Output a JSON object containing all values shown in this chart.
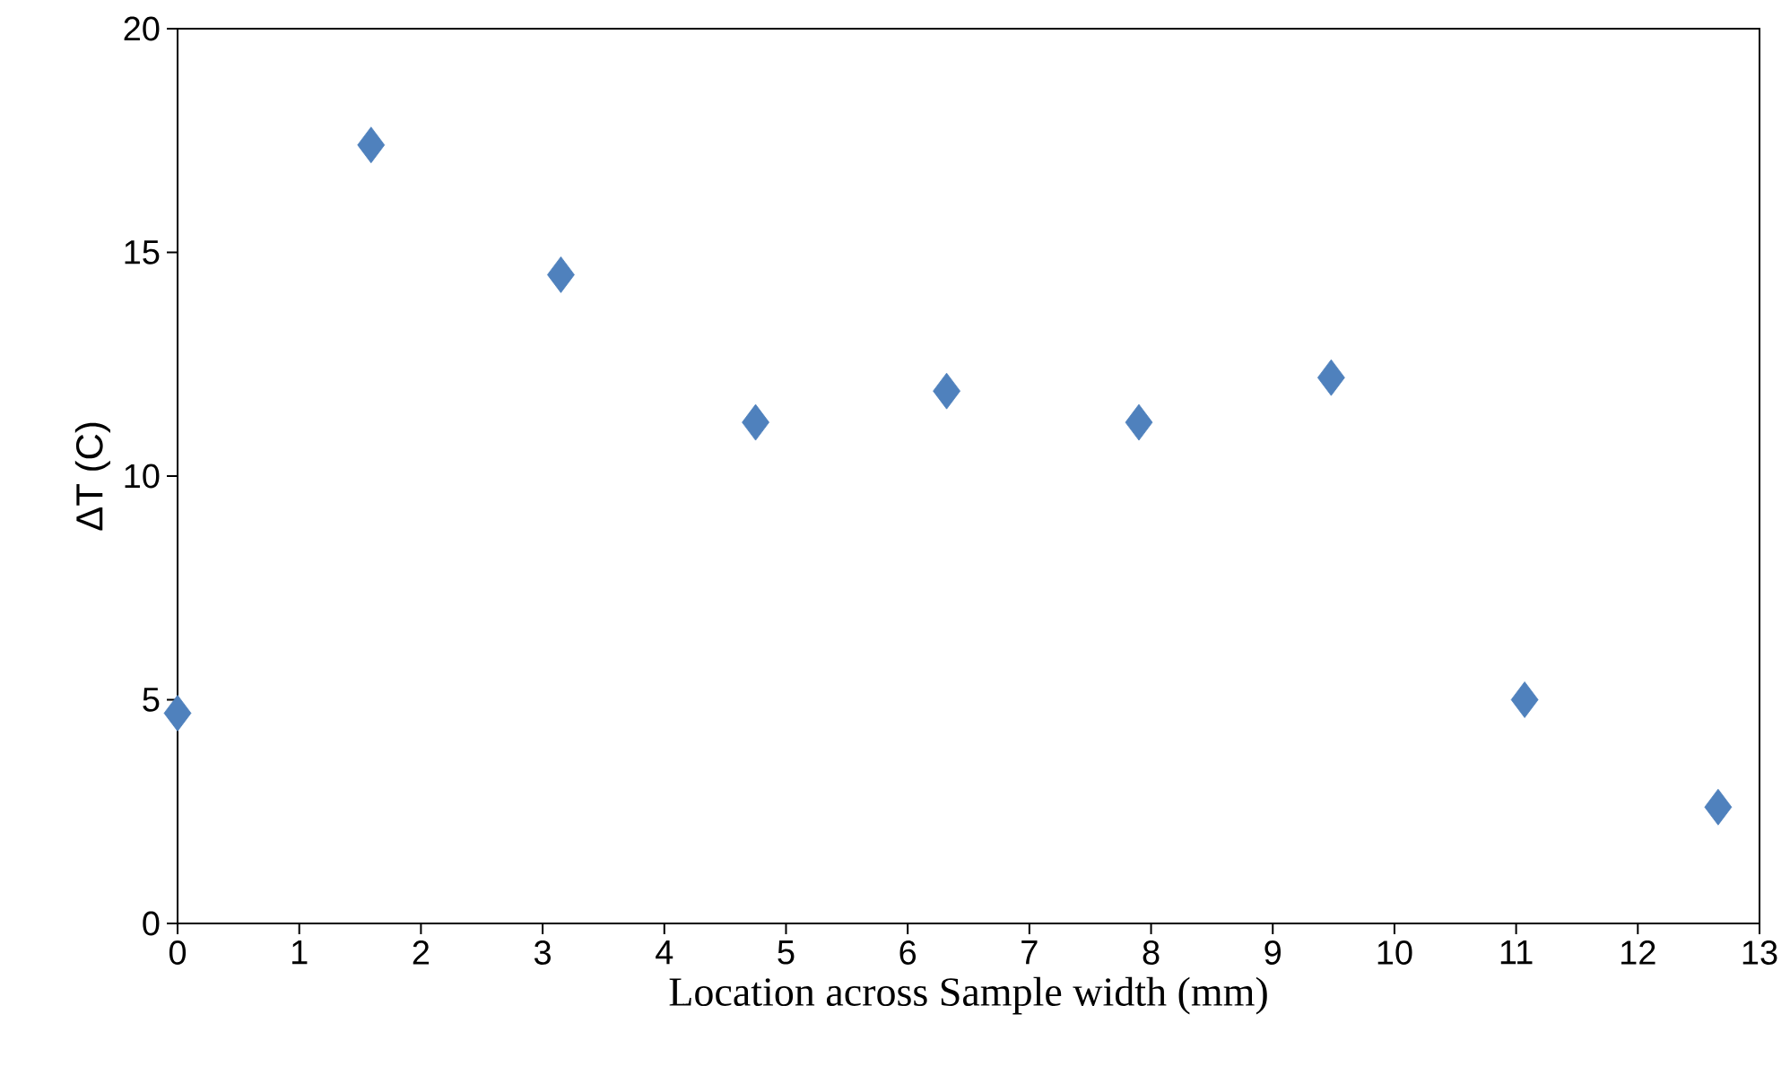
{
  "chart_data": {
    "type": "scatter",
    "xlabel": "Location across Sample width (mm)",
    "ylabel": "ΔT (C)",
    "x": [
      0,
      1.59,
      3.15,
      4.75,
      6.32,
      7.9,
      9.48,
      11.07,
      12.66
    ],
    "series": [
      {
        "color": "#4f81bd",
        "values": [
          4.7,
          17.4,
          14.5,
          11.2,
          11.9,
          11.2,
          12.2,
          5.0,
          2.6
        ]
      }
    ],
    "xlim": [
      0,
      13
    ],
    "ylim": [
      0,
      20
    ],
    "xticks": [
      0,
      1,
      2,
      3,
      4,
      5,
      6,
      7,
      8,
      9,
      10,
      11,
      12,
      13
    ],
    "yticks": [
      0,
      5,
      10,
      15,
      20
    ],
    "marker": "diamond",
    "grid": false
  }
}
